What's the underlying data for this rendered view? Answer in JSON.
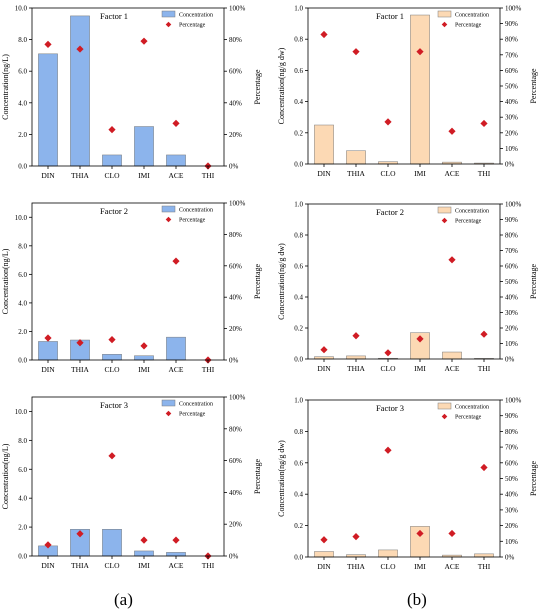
{
  "figure_labels": [
    "(a)",
    "(b)"
  ],
  "chart_data": [
    {
      "type": "bar",
      "title": "Factor 1",
      "xlabel": "",
      "ylabel": "Concentration(ng/L)",
      "y2label": "Percentage",
      "categories": [
        "DIN",
        "THIA",
        "CLO",
        "IMI",
        "ACE",
        "THI"
      ],
      "ylim": [
        0,
        10
      ],
      "yticks": [
        "0.0",
        "2.0",
        "4.0",
        "6.0",
        "8.0",
        "10.0"
      ],
      "y2lim": [
        0,
        100
      ],
      "y2ticks": [
        "0%",
        "20%",
        "40%",
        "60%",
        "80%",
        "100%"
      ],
      "legend": [
        "Concentration",
        "Percentage"
      ],
      "legend_placement": "top-right",
      "bar_color": "#8cb4ec",
      "marker_color": "#d01c24",
      "series": [
        {
          "name": "Concentration",
          "values": [
            7.1,
            9.5,
            0.7,
            2.5,
            0.7,
            0.0
          ]
        },
        {
          "name": "Percentage",
          "axis": "right",
          "values": [
            77,
            74,
            23,
            79,
            27,
            0
          ]
        }
      ]
    },
    {
      "type": "bar",
      "title": "Factor 1",
      "xlabel": "",
      "ylabel": "Concentration(ng/g dw)",
      "y2label": "Percentage",
      "categories": [
        "DIN",
        "THIA",
        "CLO",
        "IMI",
        "ACE",
        "THI"
      ],
      "ylim": [
        0,
        1
      ],
      "yticks": [
        "0.0",
        "0.2",
        "0.4",
        "0.6",
        "0.8",
        "1.0"
      ],
      "y2lim": [
        0,
        100
      ],
      "y2ticks": [
        "0%",
        "10%",
        "20%",
        "30%",
        "40%",
        "50%",
        "60%",
        "70%",
        "80%",
        "90%",
        "100%"
      ],
      "legend": [
        "Concentration",
        "Percentage"
      ],
      "legend_placement": "top-right",
      "bar_color": "#fcd9b4",
      "marker_color": "#d01c24",
      "series": [
        {
          "name": "Concentration",
          "values": [
            0.25,
            0.085,
            0.015,
            0.955,
            0.012,
            0.006
          ]
        },
        {
          "name": "Percentage",
          "axis": "right",
          "values": [
            83,
            72,
            27,
            72,
            21,
            26
          ]
        }
      ]
    },
    {
      "type": "bar",
      "title": "Factor 2",
      "xlabel": "",
      "ylabel": "Concentration(ng/L)",
      "y2label": "Percentage",
      "categories": [
        "DIN",
        "THIA",
        "CLO",
        "IMI",
        "ACE",
        "THI"
      ],
      "ylim": [
        0,
        11
      ],
      "yticks": [
        "0.0",
        "2.0",
        "4.0",
        "6.0",
        "8.0",
        "10.0"
      ],
      "y2lim": [
        0,
        100
      ],
      "y2ticks": [
        "0%",
        "20%",
        "40%",
        "60%",
        "80%",
        "100%"
      ],
      "legend": [
        "Concentration",
        "Percentage"
      ],
      "legend_placement": "top-right",
      "bar_color": "#8cb4ec",
      "marker_color": "#d01c24",
      "series": [
        {
          "name": "Concentration",
          "values": [
            1.3,
            1.4,
            0.4,
            0.3,
            1.6,
            0.0
          ]
        },
        {
          "name": "Percentage",
          "axis": "right",
          "values": [
            14,
            11,
            13,
            9,
            63,
            0
          ]
        }
      ]
    },
    {
      "type": "bar",
      "title": "Factor 2",
      "xlabel": "",
      "ylabel": "Concentration(ng/g dw)",
      "y2label": "Percentage",
      "categories": [
        "DIN",
        "THIA",
        "CLO",
        "IMI",
        "ACE",
        "THI"
      ],
      "ylim": [
        0,
        1
      ],
      "yticks": [
        "0.0",
        "0.2",
        "0.4",
        "0.6",
        "0.8",
        "1.0"
      ],
      "y2lim": [
        0,
        100
      ],
      "y2ticks": [
        "0%",
        "10%",
        "20%",
        "30%",
        "40%",
        "50%",
        "60%",
        "70%",
        "80%",
        "90%",
        "100%"
      ],
      "legend": [
        "Concentration",
        "Percentage"
      ],
      "legend_placement": "top-right",
      "bar_color": "#fcd9b4",
      "marker_color": "#d01c24",
      "series": [
        {
          "name": "Concentration",
          "values": [
            0.015,
            0.02,
            0.005,
            0.17,
            0.045,
            0.004
          ]
        },
        {
          "name": "Percentage",
          "axis": "right",
          "values": [
            6,
            15,
            4,
            13,
            64,
            16
          ]
        }
      ]
    },
    {
      "type": "bar",
      "title": "Factor 3",
      "xlabel": "",
      "ylabel": "Concentration(ng/L)",
      "y2label": "Percentage",
      "categories": [
        "DIN",
        "THIA",
        "CLO",
        "IMI",
        "ACE",
        "THI"
      ],
      "ylim": [
        0,
        11
      ],
      "yticks": [
        "0.0",
        "2.0",
        "4.0",
        "6.0",
        "8.0",
        "10.0"
      ],
      "y2lim": [
        0,
        100
      ],
      "y2ticks": [
        "0%",
        "20%",
        "40%",
        "60%",
        "80%",
        "100%"
      ],
      "legend": [
        "Concentration",
        "Percentage"
      ],
      "legend_placement": "top-right",
      "bar_color": "#8cb4ec",
      "marker_color": "#d01c24",
      "series": [
        {
          "name": "Concentration",
          "values": [
            0.7,
            1.85,
            1.85,
            0.35,
            0.25,
            0.0
          ]
        },
        {
          "name": "Percentage",
          "axis": "right",
          "values": [
            7,
            14,
            63,
            10,
            10,
            0
          ]
        }
      ]
    },
    {
      "type": "bar",
      "title": "Factor 3",
      "xlabel": "",
      "ylabel": "Concentration(ng/g dw)",
      "y2label": "Percentage",
      "categories": [
        "DIN",
        "THIA",
        "CLO",
        "IMI",
        "ACE",
        "THI"
      ],
      "ylim": [
        0,
        1
      ],
      "yticks": [
        "0.0",
        "0.2",
        "0.4",
        "0.6",
        "0.8",
        "1.0"
      ],
      "y2lim": [
        0,
        100
      ],
      "y2ticks": [
        "0%",
        "10%",
        "20%",
        "30%",
        "40%",
        "50%",
        "60%",
        "70%",
        "80%",
        "90%",
        "100%"
      ],
      "legend": [
        "Concentration",
        "Percentage"
      ],
      "legend_placement": "top-right",
      "bar_color": "#fcd9b4",
      "marker_color": "#d01c24",
      "series": [
        {
          "name": "Concentration",
          "values": [
            0.035,
            0.015,
            0.045,
            0.195,
            0.012,
            0.02
          ]
        },
        {
          "name": "Percentage",
          "axis": "right",
          "values": [
            11,
            13,
            68,
            15,
            15,
            57
          ]
        }
      ]
    }
  ]
}
